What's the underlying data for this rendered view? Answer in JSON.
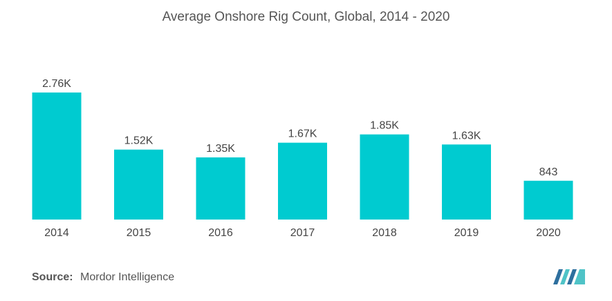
{
  "chart_data": {
    "type": "bar",
    "title": "Average Onshore Rig Count, Global, 2014 - 2020",
    "categories": [
      "2014",
      "2015",
      "2016",
      "2017",
      "2018",
      "2019",
      "2020"
    ],
    "values": [
      2760,
      1520,
      1350,
      1670,
      1850,
      1630,
      843
    ],
    "data_labels": [
      "2.76K",
      "1.52K",
      "1.35K",
      "1.67K",
      "1.85K",
      "1.63K",
      "843"
    ],
    "xlabel": "",
    "ylabel": "",
    "ylim": [
      0,
      2760
    ],
    "grid": false,
    "legend": "none",
    "bar_color": "#00cbd0"
  },
  "source": {
    "label": "Source:",
    "value": "Mordor Intelligence"
  },
  "logo": {
    "icon": "mordor-intelligence-logo",
    "color_dark": "#2e6f9e",
    "color_light": "#4fc3c7"
  }
}
